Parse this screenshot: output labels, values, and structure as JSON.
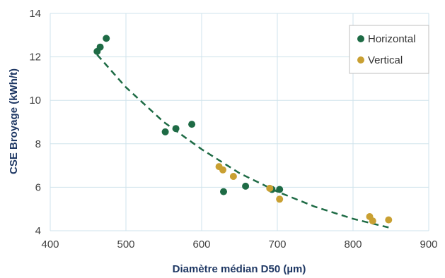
{
  "chart_data": {
    "type": "scatter",
    "xlabel": "Diamètre médian D50 (µm)",
    "ylabel": "CSE  Broyage (kWh/t)",
    "xlim": [
      400,
      900
    ],
    "ylim": [
      4,
      14
    ],
    "x_ticks": [
      400,
      500,
      600,
      700,
      800,
      900
    ],
    "y_ticks": [
      4,
      6,
      8,
      10,
      12,
      14
    ],
    "grid": true,
    "legend_position": "top-right",
    "series": [
      {
        "name": "Horizontal",
        "color": "#1e6b45",
        "points": [
          {
            "x": 462,
            "y": 12.25
          },
          {
            "x": 466,
            "y": 12.45
          },
          {
            "x": 474,
            "y": 12.85
          },
          {
            "x": 552,
            "y": 8.55
          },
          {
            "x": 566,
            "y": 8.7
          },
          {
            "x": 587,
            "y": 8.9
          },
          {
            "x": 629,
            "y": 5.8
          },
          {
            "x": 658,
            "y": 6.05
          },
          {
            "x": 693,
            "y": 5.9
          },
          {
            "x": 703,
            "y": 5.9
          }
        ]
      },
      {
        "name": "Vertical",
        "color": "#c9a032",
        "points": [
          {
            "x": 623,
            "y": 6.95
          },
          {
            "x": 628,
            "y": 6.8
          },
          {
            "x": 642,
            "y": 6.5
          },
          {
            "x": 690,
            "y": 5.95
          },
          {
            "x": 703,
            "y": 5.45
          },
          {
            "x": 822,
            "y": 4.65
          },
          {
            "x": 826,
            "y": 4.45
          },
          {
            "x": 847,
            "y": 4.5
          }
        ]
      }
    ],
    "trendline": {
      "style": "dashed",
      "color": "#1e6b45",
      "points": [
        {
          "x": 462,
          "y": 12.1
        },
        {
          "x": 500,
          "y": 10.6
        },
        {
          "x": 550,
          "y": 9.0
        },
        {
          "x": 600,
          "y": 7.75
        },
        {
          "x": 650,
          "y": 6.65
        },
        {
          "x": 700,
          "y": 5.8
        },
        {
          "x": 750,
          "y": 5.1
        },
        {
          "x": 800,
          "y": 4.55
        },
        {
          "x": 847,
          "y": 4.15
        }
      ]
    }
  }
}
